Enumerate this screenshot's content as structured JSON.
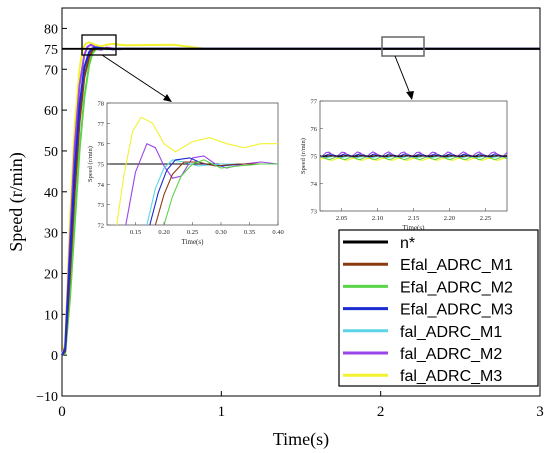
{
  "chart_data": {
    "type": "line",
    "xlabel": "Time(s)",
    "ylabel": "Speed (r/min)",
    "xlim": [
      0,
      3
    ],
    "ylim": [
      -10,
      85
    ],
    "xticks": [
      "0",
      "1",
      "2",
      "3"
    ],
    "yticks": [
      "−10",
      "0",
      "10",
      "20",
      "30",
      "40",
      "50",
      "60",
      "70",
      "75",
      "80"
    ],
    "legend_position": "bottom-right",
    "series": [
      {
        "name": "n*",
        "color": "#000000",
        "x": [
          0,
          3
        ],
        "y": [
          75,
          75
        ]
      },
      {
        "name": "Efal_ADRC_M1",
        "color": "#8B3A10",
        "x": [
          0,
          0.02,
          0.05,
          0.08,
          0.11,
          0.14,
          0.17,
          0.19,
          0.21,
          0.24,
          0.28,
          0.32,
          0.36,
          0.4,
          1.0,
          2.0,
          3.0
        ],
        "y": [
          0,
          1,
          20,
          40,
          57,
          68,
          73,
          74.6,
          75,
          75.2,
          75.1,
          74.9,
          75.0,
          75.0,
          75,
          75,
          75
        ]
      },
      {
        "name": "Efal_ADRC_M2",
        "color": "#5BD44A",
        "x": [
          0,
          0.02,
          0.05,
          0.08,
          0.11,
          0.14,
          0.17,
          0.19,
          0.21,
          0.24,
          0.28,
          0.32,
          0.36,
          0.4,
          1.0,
          2.0,
          3.0
        ],
        "y": [
          0,
          0.5,
          14,
          32,
          50,
          63,
          71,
          73.8,
          74.8,
          75.2,
          75.0,
          74.9,
          75.0,
          75.0,
          75,
          75,
          75
        ]
      },
      {
        "name": "Efal_ADRC_M3",
        "color": "#1A2BD0",
        "x": [
          0,
          0.02,
          0.05,
          0.08,
          0.11,
          0.14,
          0.17,
          0.19,
          0.21,
          0.24,
          0.28,
          0.32,
          0.36,
          0.4,
          1.0,
          2.0,
          3.0
        ],
        "y": [
          0,
          1.5,
          24,
          45,
          61,
          70.5,
          74.2,
          75.1,
          75.4,
          75.2,
          75.0,
          74.9,
          75.0,
          75.0,
          75,
          75,
          75
        ]
      },
      {
        "name": "fal_ADRC_M1",
        "color": "#5CD6E6",
        "x": [
          0,
          0.02,
          0.05,
          0.08,
          0.11,
          0.14,
          0.17,
          0.19,
          0.21,
          0.24,
          0.28,
          0.32,
          0.36,
          0.4,
          1.0,
          2.0,
          3.0
        ],
        "y": [
          0,
          1.2,
          22,
          43,
          60,
          70,
          74,
          75.0,
          75.3,
          75.1,
          74.9,
          75.0,
          75.0,
          75.0,
          75,
          75,
          75
        ]
      },
      {
        "name": "fal_ADRC_M2",
        "color": "#9B44E8",
        "x": [
          0,
          0.02,
          0.05,
          0.08,
          0.11,
          0.14,
          0.16,
          0.18,
          0.2,
          0.22,
          0.25,
          0.28,
          0.32,
          0.36,
          0.4,
          1.0,
          2.0,
          3.0
        ],
        "y": [
          0,
          2,
          28,
          51,
          66,
          73.5,
          75.5,
          76.0,
          75.6,
          74.9,
          74.8,
          75.3,
          75.1,
          74.9,
          75.0,
          75,
          75,
          75
        ]
      },
      {
        "name": "fal_ADRC_M3",
        "color": "#F2F230",
        "x": [
          0,
          0.02,
          0.05,
          0.08,
          0.11,
          0.13,
          0.15,
          0.17,
          0.2,
          0.24,
          0.28,
          0.32,
          0.36,
          0.4,
          0.7,
          0.8,
          0.9,
          1.0,
          2.0,
          3.0
        ],
        "y": [
          0,
          3,
          33,
          56,
          70,
          75,
          76.3,
          76.6,
          76.1,
          75.6,
          76.0,
          76.2,
          76.0,
          75.9,
          76.0,
          75.5,
          75.0,
          75,
          75,
          75
        ]
      }
    ],
    "inset_1": {
      "xlabel": "Time(s)",
      "ylabel": "Speed (r/min)",
      "xlim": [
        0.1,
        0.4
      ],
      "ylim": [
        72,
        78
      ],
      "xticks": [
        "0.15",
        "0.20",
        "0.25",
        "0.30",
        "0.35",
        "0.40"
      ],
      "yticks": [
        "72",
        "73",
        "74",
        "75",
        "76",
        "77",
        "78"
      ]
    },
    "inset_2": {
      "xlabel": "Time(s)",
      "ylabel": "Speed (r/min)",
      "xlim": [
        2.02,
        2.28
      ],
      "ylim": [
        73,
        77
      ],
      "xticks": [
        "2.05",
        "2.10",
        "2.15",
        "2.20",
        "2.25"
      ],
      "yticks": [
        "73",
        "74",
        "75",
        "76",
        "77"
      ]
    }
  }
}
